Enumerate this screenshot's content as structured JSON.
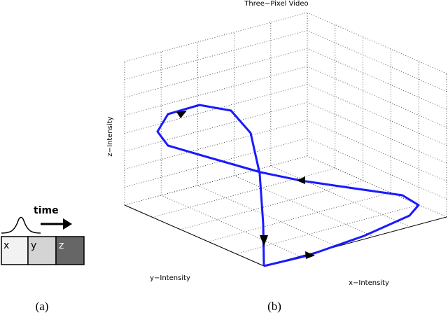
{
  "panel_a": {
    "time_label": "time",
    "cells": [
      "x",
      "y",
      "z"
    ],
    "caption": "(a)"
  },
  "panel_b": {
    "title": "Three−Pixel Video",
    "x_label": "x−Intensity",
    "y_label": "y−Intensity",
    "z_label": "z−Intensity",
    "caption": "(b)"
  }
}
